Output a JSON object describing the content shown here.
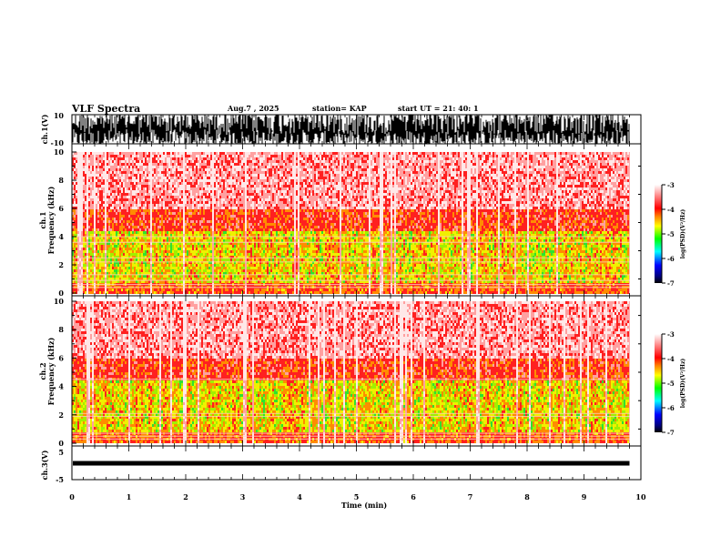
{
  "header": {
    "title": "VLF Spectra",
    "date": "Aug.7  , 2025",
    "station": "station= KAP",
    "start": "start  UT  =   21: 40: 1"
  },
  "chart_data": [
    {
      "id": "ch1-waveform",
      "type": "line",
      "ylabel": "ch.1(V)",
      "ylim": [
        -10,
        10
      ],
      "yticks": [
        "10",
        "-10"
      ],
      "xlim": [
        0,
        10
      ],
      "data_end_min": 9.8,
      "description_values": "dense noise waveform saturating roughly between -10 and 10 V"
    },
    {
      "id": "ch1-spectrogram",
      "type": "heatmap",
      "ylabel_line1": "ch.1",
      "ylabel_line2": "Frequency  (kHz)",
      "ylim": [
        0,
        10
      ],
      "yticks": [
        "0",
        "2",
        "4",
        "6",
        "8",
        "10"
      ],
      "xlim": [
        0,
        10
      ],
      "colorbar": {
        "label": "log(PSD)(V²/Hz)",
        "range": [
          -7,
          -3
        ],
        "ticks": [
          "-3",
          "-4",
          "-5",
          "-6",
          "-7"
        ]
      },
      "bands_khz": [
        0.4,
        0.6,
        0.9,
        1.3,
        2.2,
        2.5,
        3.6,
        4.0
      ]
    },
    {
      "id": "ch2-spectrogram",
      "type": "heatmap",
      "ylabel_line1": "ch.2",
      "ylabel_line2": "Frequency  (kHz)",
      "ylim": [
        0,
        10
      ],
      "yticks": [
        "0",
        "2",
        "4",
        "6",
        "8",
        "10"
      ],
      "xlim": [
        0,
        10
      ],
      "colorbar": {
        "label": "log(PSD)(V²/Hz)",
        "range": [
          -7,
          -3
        ],
        "ticks": [
          "-3",
          "-4",
          "-5",
          "-6",
          "-7"
        ]
      },
      "bands_khz": [
        0.3,
        0.5,
        0.7,
        1.9,
        2.1,
        4.5
      ]
    },
    {
      "id": "ch3-waveform",
      "type": "line",
      "ylabel": "ch.3(V)",
      "ylim": [
        -5,
        5
      ],
      "yticks": [
        "5",
        "-5"
      ],
      "xlim": [
        0,
        10
      ],
      "level_v": 0.8,
      "data_end_min": 9.8
    }
  ],
  "xaxis": {
    "label": "Time  (min)",
    "ticks": [
      "0",
      "1",
      "2",
      "3",
      "4",
      "5",
      "6",
      "7",
      "8",
      "9",
      "10"
    ]
  },
  "colors": {
    "axis": "#000000",
    "spectro_high": "#ff0000",
    "spectro_mid": "#ffff00",
    "spectro_low": "#00ff00"
  }
}
